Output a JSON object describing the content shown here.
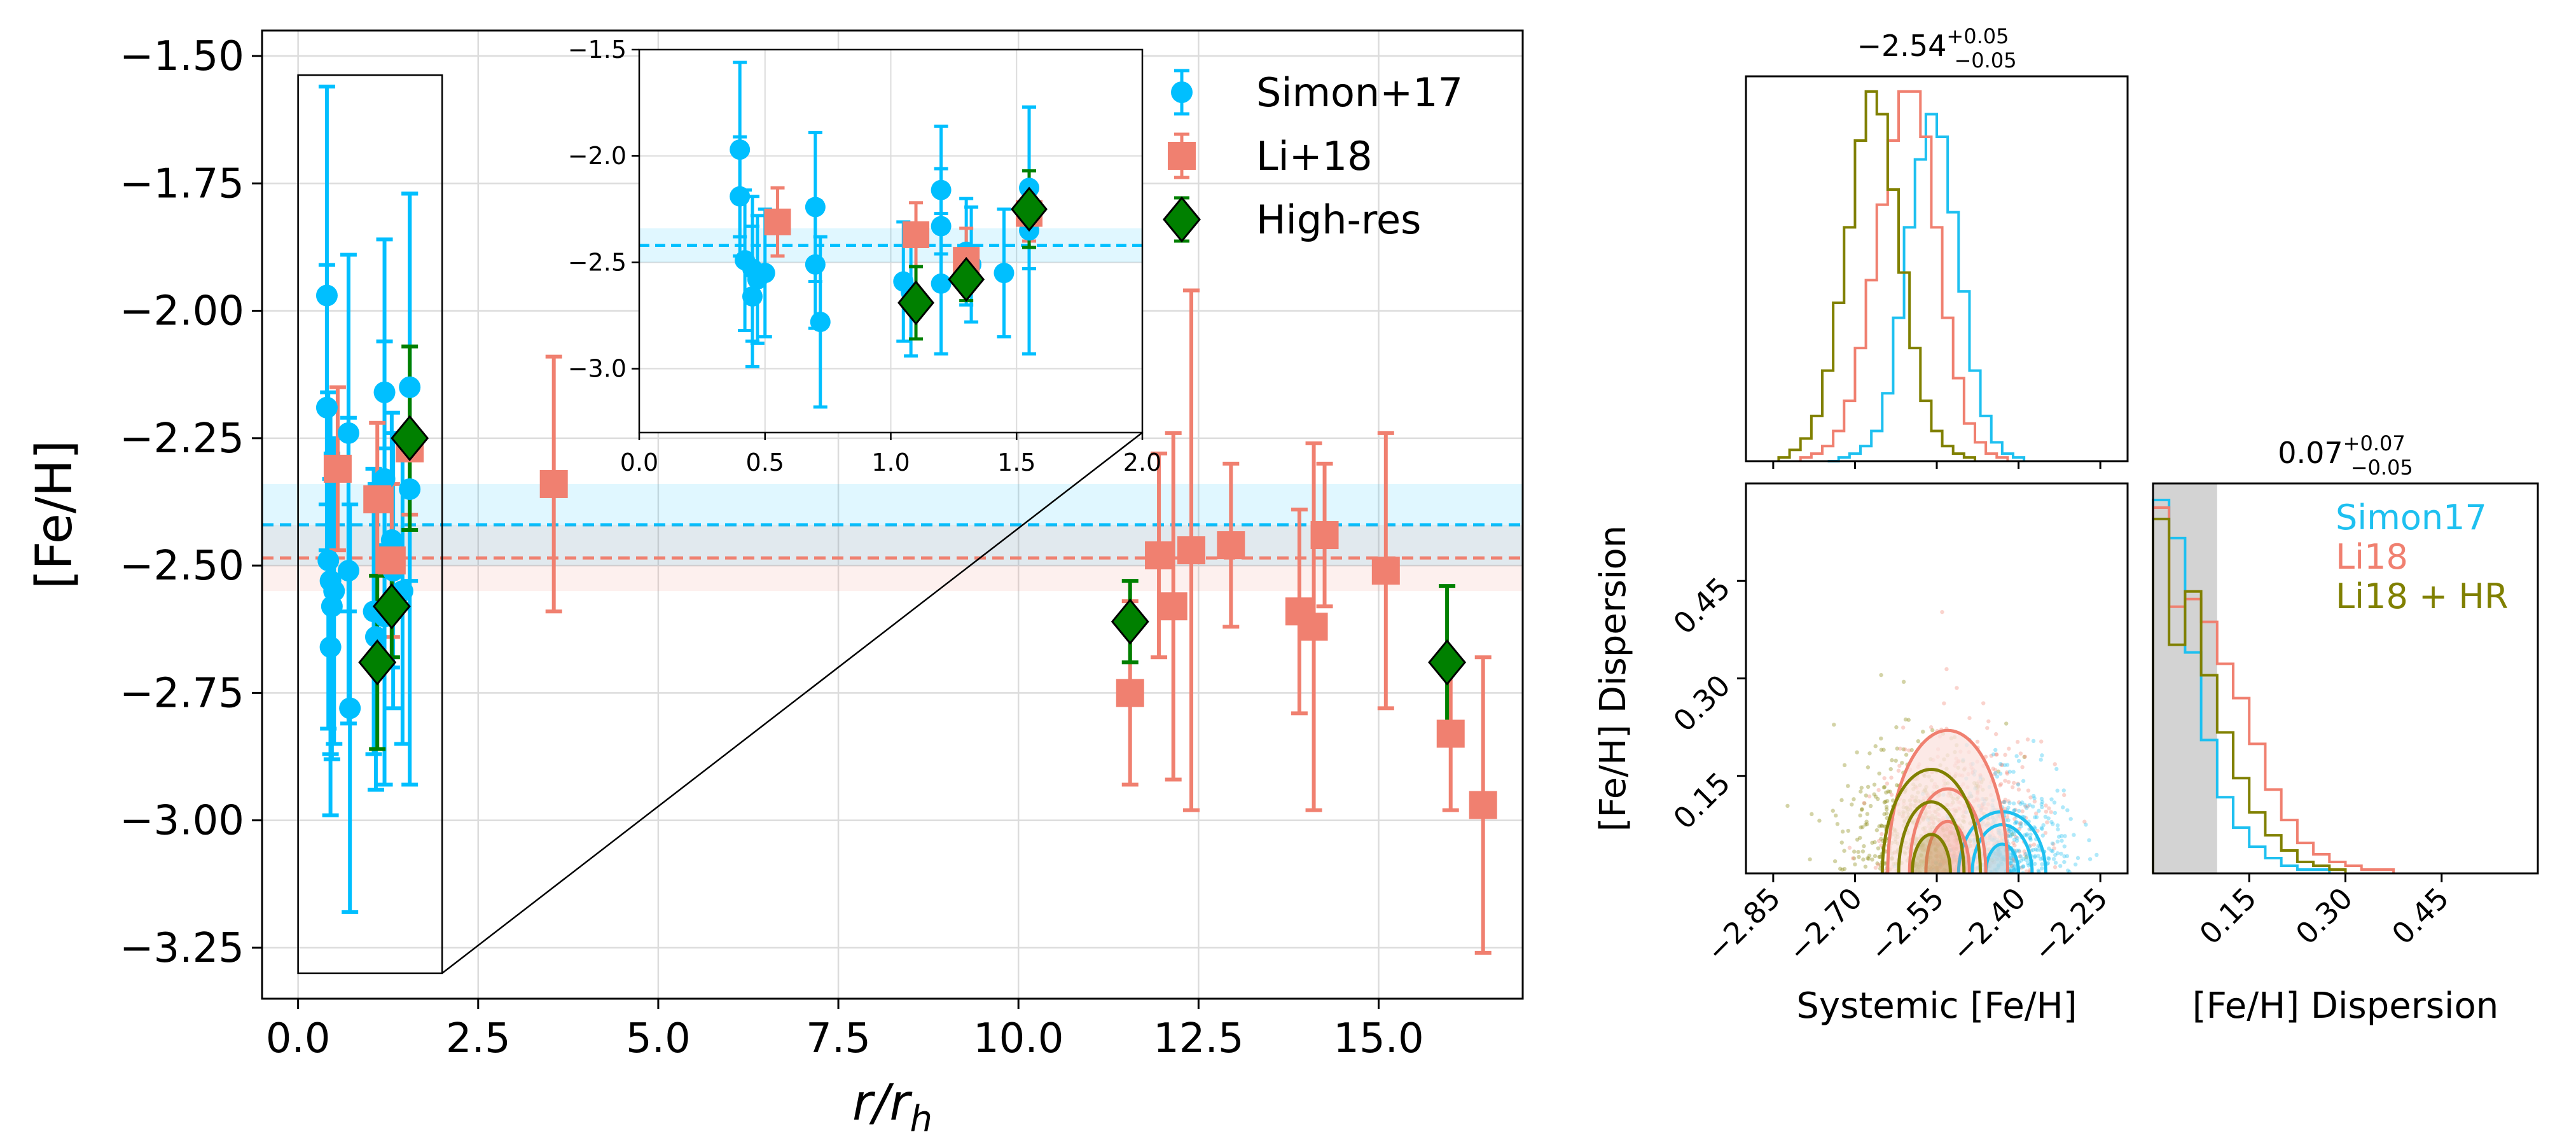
{
  "chart_data": [
    {
      "id": "main",
      "type": "scatter",
      "xlabel": "r/r_h",
      "xlabel_main": "r/r",
      "xlabel_sub": "h",
      "ylabel": "[Fe/H]",
      "xlim": [
        -0.5,
        17.0
      ],
      "ylim": [
        -3.35,
        -1.45
      ],
      "xticks": [
        0.0,
        2.5,
        5.0,
        7.5,
        10.0,
        12.5,
        15.0
      ],
      "xtick_labels": [
        "0.0",
        "2.5",
        "5.0",
        "7.5",
        "10.0",
        "12.5",
        "15.0"
      ],
      "yticks": [
        -1.5,
        -1.75,
        -2.0,
        -2.25,
        -2.5,
        -2.75,
        -3.0,
        -3.25
      ],
      "ytick_labels": [
        "−1.50",
        "−1.75",
        "−2.00",
        "−2.25",
        "−2.50",
        "−2.75",
        "−3.00",
        "−3.25"
      ],
      "grid": true,
      "legend_position": "top-right",
      "hlines": [
        {
          "name": "Simon+17 mean",
          "y": -2.42,
          "band": [
            -2.5,
            -2.34
          ],
          "color": "#00bfff"
        },
        {
          "name": "Li+18 mean",
          "y": -2.485,
          "band": [
            -2.55,
            -2.42
          ],
          "color": "#f08070"
        }
      ],
      "zoom_box": {
        "x": [
          0.0,
          2.0
        ],
        "y": [
          -3.3,
          -1.5
        ]
      },
      "series": [
        {
          "name": "Simon+17",
          "marker": "circle",
          "color": "#00bfff",
          "points": [
            {
              "x": 0.4,
              "y": -1.97,
              "err": 0.41
            },
            {
              "x": 0.4,
              "y": -2.19,
              "err": 0.28
            },
            {
              "x": 0.42,
              "y": -2.49,
              "err": 0.33
            },
            {
              "x": 0.45,
              "y": -2.53,
              "err": 0.34
            },
            {
              "x": 0.45,
              "y": -2.66,
              "err": 0.33
            },
            {
              "x": 0.47,
              "y": -2.58,
              "err": 0.3
            },
            {
              "x": 0.5,
              "y": -2.55,
              "err": 0.3
            },
            {
              "x": 0.7,
              "y": -2.24,
              "err": 0.35
            },
            {
              "x": 0.7,
              "y": -2.51,
              "err": 0.3
            },
            {
              "x": 0.72,
              "y": -2.78,
              "err": 0.4
            },
            {
              "x": 1.05,
              "y": -2.59,
              "err": 0.28
            },
            {
              "x": 1.08,
              "y": -2.64,
              "err": 0.3
            },
            {
              "x": 1.2,
              "y": -2.16,
              "err": 0.3
            },
            {
              "x": 1.2,
              "y": -2.33,
              "err": 0.27
            },
            {
              "x": 1.2,
              "y": -2.6,
              "err": 0.33
            },
            {
              "x": 1.3,
              "y": -2.45,
              "err": 0.25
            },
            {
              "x": 1.32,
              "y": -2.51,
              "err": 0.27
            },
            {
              "x": 1.45,
              "y": -2.55,
              "err": 0.3
            },
            {
              "x": 1.55,
              "y": -2.15,
              "err": 0.38
            },
            {
              "x": 1.55,
              "y": -2.35,
              "err": 0.58
            }
          ]
        },
        {
          "name": "Li+18",
          "marker": "square",
          "color": "#f08070",
          "points": [
            {
              "x": 0.55,
              "y": -2.31,
              "err": 0.16
            },
            {
              "x": 1.1,
              "y": -2.37,
              "err": 0.15
            },
            {
              "x": 1.3,
              "y": -2.49,
              "err": 0.15
            },
            {
              "x": 1.55,
              "y": -2.27,
              "err": 0.13
            },
            {
              "x": 3.55,
              "y": -2.34,
              "err": 0.25
            },
            {
              "x": 11.55,
              "y": -2.75,
              "err": 0.18
            },
            {
              "x": 11.95,
              "y": -2.48,
              "err": 0.2
            },
            {
              "x": 12.15,
              "y": -2.58,
              "err": 0.34
            },
            {
              "x": 12.4,
              "y": -2.47,
              "err": 0.51
            },
            {
              "x": 12.95,
              "y": -2.46,
              "err": 0.16
            },
            {
              "x": 13.9,
              "y": -2.59,
              "err": 0.2
            },
            {
              "x": 14.1,
              "y": -2.62,
              "err": 0.36
            },
            {
              "x": 14.25,
              "y": -2.44,
              "err": 0.14
            },
            {
              "x": 15.1,
              "y": -2.51,
              "err": 0.27
            },
            {
              "x": 16.0,
              "y": -2.83,
              "err": 0.15
            },
            {
              "x": 16.45,
              "y": -2.97,
              "err": 0.29
            }
          ]
        },
        {
          "name": "High-res",
          "marker": "diamond",
          "color": "#008000",
          "points": [
            {
              "x": 1.1,
              "y": -2.69,
              "err": 0.17
            },
            {
              "x": 1.3,
              "y": -2.58,
              "err": 0.1
            },
            {
              "x": 1.55,
              "y": -2.25,
              "err": 0.18
            },
            {
              "x": 11.55,
              "y": -2.61,
              "err": 0.08
            },
            {
              "x": 15.95,
              "y": -2.69,
              "err": 0.15
            }
          ]
        }
      ],
      "inset": {
        "xlim": [
          0.0,
          2.0
        ],
        "ylim": [
          -3.3,
          -1.5
        ],
        "xticks": [
          0.0,
          0.5,
          1.0,
          1.5,
          2.0
        ],
        "xtick_labels": [
          "0.0",
          "0.5",
          "1.0",
          "1.5",
          "2.0"
        ],
        "yticks": [
          -1.5,
          -2.0,
          -2.5,
          -3.0
        ],
        "ytick_labels": [
          "−1.5",
          "−2.0",
          "−2.5",
          "−3.0"
        ]
      }
    },
    {
      "id": "corner",
      "type": "corner",
      "title_top": {
        "value": "−2.54",
        "sup": "+0.05",
        "sub": "−0.05"
      },
      "title_right": {
        "value": "0.07",
        "sup": "+0.07",
        "sub": "−0.05"
      },
      "x1_label": "Systemic [Fe/H]",
      "x2_label": "[Fe/H] Dispersion",
      "y_label": "[Fe/H] Dispersion",
      "mean_lim": [
        -2.9,
        -2.2
      ],
      "disp_lim": [
        0.0,
        0.6
      ],
      "mean_ticks": [
        -2.85,
        -2.7,
        -2.55,
        -2.4,
        -2.25
      ],
      "mean_tick_labels": [
        "−2.85",
        "−2.70",
        "−2.55",
        "−2.40",
        "−2.25"
      ],
      "disp_ticks": [
        0.15,
        0.3,
        0.45
      ],
      "disp_tick_labels": [
        "0.15",
        "0.30",
        "0.45"
      ],
      "shaded_disp_range": [
        0.0,
        0.1
      ],
      "legend": [
        {
          "label": "Simon17",
          "color": "#1ec0f0"
        },
        {
          "label": "Li18",
          "color": "#f08070"
        },
        {
          "label": "Li18 + HR",
          "color": "#808000"
        }
      ],
      "mean_hists": [
        {
          "name": "Simon17",
          "color": "#1ec0f0",
          "x0": -2.75,
          "dx": 0.02,
          "values": [
            0,
            1,
            2,
            4,
            8,
            18,
            38,
            62,
            80,
            92,
            86,
            66,
            45,
            24,
            12,
            5,
            2,
            1
          ]
        },
        {
          "name": "Li18",
          "color": "#f08070",
          "x0": -2.8,
          "dx": 0.02,
          "values": [
            1,
            2,
            4,
            8,
            16,
            30,
            48,
            68,
            85,
            98,
            98,
            86,
            62,
            38,
            22,
            10,
            5,
            2,
            1
          ]
        },
        {
          "name": "Li18 + HR",
          "color": "#808000",
          "x0": -2.84,
          "dx": 0.02,
          "values": [
            1,
            3,
            6,
            12,
            24,
            42,
            62,
            85,
            98,
            92,
            72,
            50,
            30,
            16,
            8,
            4,
            2,
            1
          ]
        }
      ],
      "disp_hists": [
        {
          "name": "Simon17",
          "color": "#1ec0f0",
          "x0": 0.0,
          "dx": 0.025,
          "values": [
            98,
            88,
            58,
            35,
            20,
            12,
            7,
            4,
            2,
            1,
            1
          ]
        },
        {
          "name": "Li18",
          "color": "#f08070",
          "x0": 0.0,
          "dx": 0.025,
          "values": [
            96,
            70,
            72,
            66,
            55,
            46,
            34,
            22,
            14,
            8,
            5,
            3,
            2,
            1,
            1
          ]
        },
        {
          "name": "Li18 + HR",
          "color": "#808000",
          "x0": 0.0,
          "dx": 0.025,
          "values": [
            93,
            60,
            74,
            52,
            37,
            25,
            16,
            10,
            6,
            3,
            2,
            1
          ]
        }
      ],
      "clouds": [
        {
          "name": "Li18 + HR",
          "color": "#808000",
          "cx": -2.58,
          "sx": 0.07,
          "sy": 0.09,
          "n": 520
        },
        {
          "name": "Li18",
          "color": "#f08070",
          "cx": -2.5,
          "sx": 0.07,
          "sy": 0.1,
          "n": 520
        },
        {
          "name": "Simon17",
          "color": "#1ec0f0",
          "cx": -2.42,
          "sx": 0.055,
          "sy": 0.07,
          "n": 420
        }
      ],
      "contours": [
        {
          "name": "Simon17",
          "color": "#1ec0f0",
          "cx": -2.43,
          "levels": [
            {
              "rx": 0.03,
              "ry": 0.045
            },
            {
              "rx": 0.055,
              "ry": 0.075
            },
            {
              "rx": 0.08,
              "ry": 0.095
            }
          ]
        },
        {
          "name": "Li18",
          "color": "#f08070",
          "cx": -2.53,
          "levels": [
            {
              "rx": 0.04,
              "ry": 0.08
            },
            {
              "rx": 0.07,
              "ry": 0.13
            },
            {
              "rx": 0.11,
              "ry": 0.22
            }
          ]
        },
        {
          "name": "Li18 + HR",
          "color": "#808000",
          "cx": -2.56,
          "levels": [
            {
              "rx": 0.035,
              "ry": 0.06
            },
            {
              "rx": 0.06,
              "ry": 0.11
            },
            {
              "rx": 0.09,
              "ry": 0.16
            }
          ]
        }
      ]
    }
  ]
}
